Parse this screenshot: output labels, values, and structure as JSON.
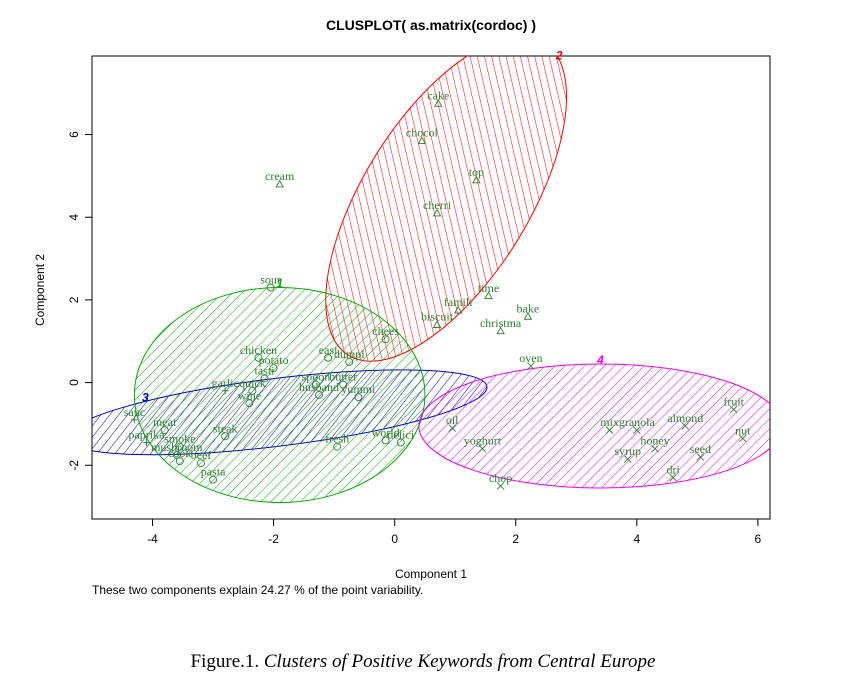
{
  "chart_data": {
    "type": "scatter",
    "title": "CLUSPLOT( as.matrix(cordoc) )",
    "xlabel": "Component 1",
    "ylabel": "Component 2",
    "xlim": [
      -5,
      6.2
    ],
    "ylim": [
      -3.3,
      7.9
    ],
    "xticks": [
      -4,
      -2,
      0,
      2,
      4,
      6
    ],
    "yticks": [
      -2,
      0,
      2,
      4,
      6
    ],
    "note": "These two components explain 24.27 % of the point variability.",
    "clusters": [
      {
        "id": "2",
        "color": "#ff0000",
        "marker": "triangle",
        "ellipse": {
          "cx": 0.85,
          "cy": 4.45,
          "rx": 3.05,
          "ry": 2.0,
          "angle": 58
        }
      },
      {
        "id": "3",
        "color": "#0000cc",
        "marker": "plus",
        "ellipse": {
          "cx": -1.95,
          "cy": -0.72,
          "rx": 3.5,
          "ry": 0.82,
          "angle": 7
        }
      },
      {
        "id": "1",
        "color": "#00aa00",
        "marker": "circle",
        "ellipse": {
          "cx": -1.9,
          "cy": -0.3,
          "rx": 2.4,
          "ry": 2.6,
          "angle": 0
        }
      },
      {
        "id": "4",
        "color": "#ee00ee",
        "marker": "x",
        "ellipse": {
          "cx": 3.4,
          "cy": -1.05,
          "rx": 3.0,
          "ry": 1.5,
          "angle": 0
        }
      }
    ],
    "points": [
      {
        "label": "cake",
        "x": 0.72,
        "y": 6.75,
        "cluster": "2"
      },
      {
        "label": "chocol",
        "x": 0.45,
        "y": 5.85,
        "cluster": "2"
      },
      {
        "label": "cream",
        "x": -1.9,
        "y": 4.8,
        "cluster": "2"
      },
      {
        "label": "top",
        "x": 1.35,
        "y": 4.9,
        "cluster": "2"
      },
      {
        "label": "cherri",
        "x": 0.7,
        "y": 4.1,
        "cluster": "2"
      },
      {
        "label": "time",
        "x": 1.55,
        "y": 2.1,
        "cluster": "2"
      },
      {
        "label": "famili",
        "x": 1.05,
        "y": 1.75,
        "cluster": "2"
      },
      {
        "label": "bake",
        "x": 2.2,
        "y": 1.6,
        "cluster": "2"
      },
      {
        "label": "biscuit",
        "x": 0.7,
        "y": 1.4,
        "cluster": "2"
      },
      {
        "label": "christma",
        "x": 1.75,
        "y": 1.25,
        "cluster": "2"
      },
      {
        "label": "sour",
        "x": -2.05,
        "y": 2.3,
        "cluster": "1"
      },
      {
        "label": "chees",
        "x": -0.15,
        "y": 1.05,
        "cluster": "1"
      },
      {
        "label": "chicken",
        "x": -2.25,
        "y": 0.6,
        "cluster": "1"
      },
      {
        "label": "easi",
        "x": -1.1,
        "y": 0.6,
        "cluster": "1"
      },
      {
        "label": "dumpl",
        "x": -0.75,
        "y": 0.5,
        "cluster": "1"
      },
      {
        "label": "potato",
        "x": -2.0,
        "y": 0.35,
        "cluster": "1"
      },
      {
        "label": "tasti",
        "x": -2.15,
        "y": 0.1,
        "cluster": "1"
      },
      {
        "label": "spoon",
        "x": -1.3,
        "y": -0.05,
        "cluster": "1"
      },
      {
        "label": "butter",
        "x": -0.85,
        "y": -0.05,
        "cluster": "1"
      },
      {
        "label": "garlic",
        "x": -2.8,
        "y": -0.2,
        "cluster": "3"
      },
      {
        "label": "quick",
        "x": -2.35,
        "y": -0.2,
        "cluster": "1"
      },
      {
        "label": "husband",
        "x": -1.25,
        "y": -0.3,
        "cluster": "1"
      },
      {
        "label": "yummi",
        "x": -0.6,
        "y": -0.35,
        "cluster": "1"
      },
      {
        "label": "wine",
        "x": -2.4,
        "y": -0.5,
        "cluster": "1"
      },
      {
        "label": "sauc",
        "x": -4.3,
        "y": -0.9,
        "cluster": "3"
      },
      {
        "label": "meat",
        "x": -3.8,
        "y": -1.15,
        "cluster": "1"
      },
      {
        "label": "steak",
        "x": -2.8,
        "y": -1.3,
        "cluster": "1"
      },
      {
        "label": "paprika",
        "x": -4.1,
        "y": -1.45,
        "cluster": "3"
      },
      {
        "label": "smoke",
        "x": -3.55,
        "y": -1.55,
        "cluster": "1"
      },
      {
        "label": "fresh",
        "x": -0.95,
        "y": -1.55,
        "cluster": "1"
      },
      {
        "label": "world",
        "x": -0.15,
        "y": -1.4,
        "cluster": "1"
      },
      {
        "label": "delici",
        "x": 0.1,
        "y": -1.45,
        "cluster": "1"
      },
      {
        "label": "mushroom",
        "x": -3.6,
        "y": -1.75,
        "cluster": "1"
      },
      {
        "label": "cook",
        "x": -3.55,
        "y": -1.9,
        "cluster": "1"
      },
      {
        "label": "beef",
        "x": -3.2,
        "y": -1.95,
        "cluster": "1"
      },
      {
        "label": "pasta",
        "x": -3.0,
        "y": -2.35,
        "cluster": "1"
      },
      {
        "label": "oil",
        "x": 0.95,
        "y": -1.1,
        "cluster": "4"
      },
      {
        "label": "oven",
        "x": 2.25,
        "y": 0.4,
        "cluster": "4"
      },
      {
        "label": "yoghurt",
        "x": 1.45,
        "y": -1.6,
        "cluster": "4"
      },
      {
        "label": "chop",
        "x": 1.75,
        "y": -2.5,
        "cluster": "4"
      },
      {
        "label": "fruit",
        "x": 5.6,
        "y": -0.65,
        "cluster": "4"
      },
      {
        "label": "mix",
        "x": 3.55,
        "y": -1.15,
        "cluster": "4"
      },
      {
        "label": "granola",
        "x": 4.0,
        "y": -1.15,
        "cluster": "4"
      },
      {
        "label": "almond",
        "x": 4.8,
        "y": -1.05,
        "cluster": "4"
      },
      {
        "label": "nut",
        "x": 5.75,
        "y": -1.35,
        "cluster": "4"
      },
      {
        "label": "honey",
        "x": 4.3,
        "y": -1.6,
        "cluster": "4"
      },
      {
        "label": "syrup",
        "x": 3.85,
        "y": -1.85,
        "cluster": "4"
      },
      {
        "label": "seed",
        "x": 5.05,
        "y": -1.8,
        "cluster": "4"
      },
      {
        "label": "dri",
        "x": 4.6,
        "y": -2.3,
        "cluster": "4"
      }
    ]
  },
  "caption": {
    "prefix": "Figure.1. ",
    "text": "Clusters of Positive Keywords from Central Europe"
  }
}
